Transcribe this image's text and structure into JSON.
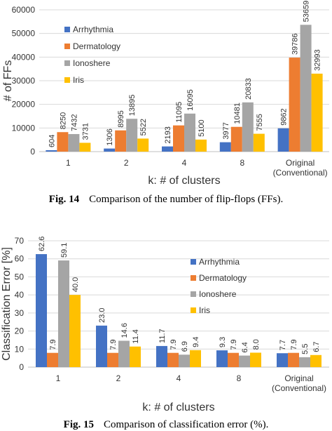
{
  "colors": {
    "Arrhythmia": "#4472c4",
    "Dermatology": "#ed7d31",
    "Ionoshere": "#a5a5a5",
    "Iris": "#ffc000"
  },
  "captions": {
    "fig14_num": "Fig. 14",
    "fig14_text": "Comparison of the number of flip-flops (FFs).",
    "fig15_num": "Fig. 15",
    "fig15_text": "Comparison of classification error (%)."
  },
  "chart_data": [
    {
      "type": "bar",
      "title": "",
      "xlabel": "k: # of clusters",
      "ylabel": "# of FFs",
      "categories": [
        "1",
        "2",
        "4",
        "8",
        "Original|(Conventional)"
      ],
      "ylim": [
        0,
        60000
      ],
      "yticks": [
        "0",
        "10000",
        "20000",
        "30000",
        "40000",
        "50000",
        "60000"
      ],
      "legend_position": "top-left",
      "series": [
        {
          "name": "Arrhythmia",
          "values": [
            604,
            1306,
            2193,
            3977,
            9862
          ],
          "labels": [
            "604",
            "1306",
            "2193",
            "3977",
            "9862"
          ]
        },
        {
          "name": "Dermatology",
          "values": [
            8250,
            8995,
            11095,
            10481,
            39786
          ],
          "labels": [
            "8250",
            "8995",
            "11095",
            "10481",
            "39786"
          ]
        },
        {
          "name": "Ionoshere",
          "values": [
            7432,
            13895,
            16095,
            20833,
            53659
          ],
          "labels": [
            "7432",
            "13895",
            "16095",
            "20833",
            "53659"
          ]
        },
        {
          "name": "Iris",
          "values": [
            3731,
            5522,
            5100,
            7555,
            32993
          ],
          "labels": [
            "3731",
            "5522",
            "5100",
            "7555",
            "32993"
          ]
        }
      ]
    },
    {
      "type": "bar",
      "title": "",
      "xlabel": "k: # of clusters",
      "ylabel": "Classification Error [%]",
      "categories": [
        "1",
        "2",
        "4",
        "8",
        "Original|(Conventional)"
      ],
      "ylim": [
        0,
        70
      ],
      "yticks": [
        "0",
        "10",
        "20",
        "30",
        "40",
        "50",
        "60",
        "70"
      ],
      "legend_position": "top-right",
      "series": [
        {
          "name": "Arrhythmia",
          "values": [
            62.6,
            23.0,
            11.7,
            9.3,
            7.7
          ],
          "labels": [
            "62.6",
            "23.0",
            "11.7",
            "9.3",
            "7.7"
          ]
        },
        {
          "name": "Dermatology",
          "values": [
            7.9,
            7.9,
            7.9,
            7.9,
            7.9
          ],
          "labels": [
            "7.9",
            "7.9",
            "7.9",
            "7.9",
            "7.9"
          ]
        },
        {
          "name": "Ionoshere",
          "values": [
            59.1,
            14.6,
            6.9,
            6.4,
            5.5
          ],
          "labels": [
            "59.1",
            "14.6",
            "6.9",
            "6.4",
            "5.5"
          ]
        },
        {
          "name": "Iris",
          "values": [
            40.0,
            11.4,
            9.4,
            8.0,
            6.7
          ],
          "labels": [
            "40.0",
            "11.4",
            "9.4",
            "8.0",
            "6.7"
          ]
        }
      ]
    }
  ]
}
